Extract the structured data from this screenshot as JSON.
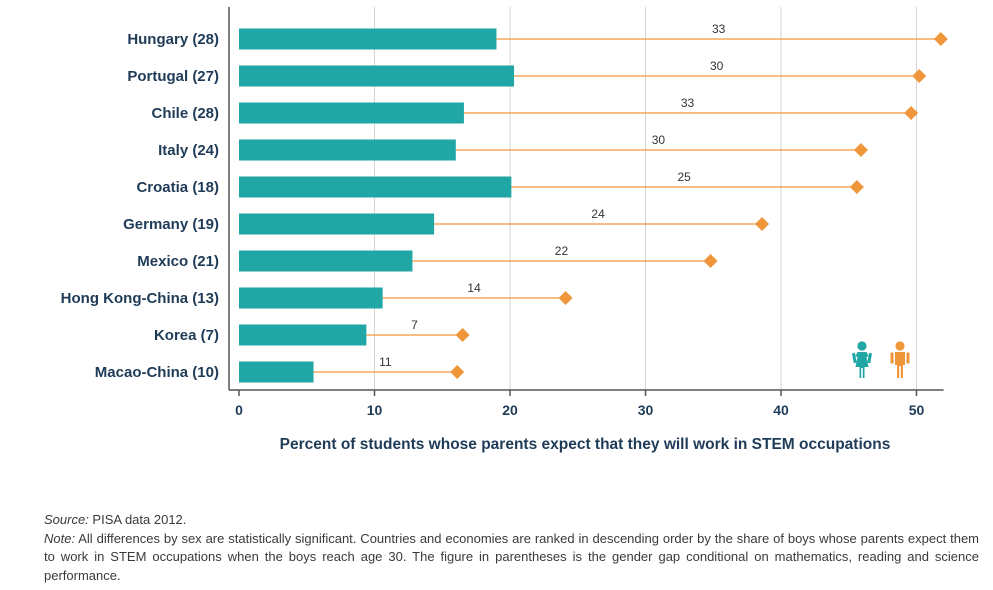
{
  "chart_data": {
    "type": "bar",
    "orientation": "horizontal",
    "categories": [
      "Hungary (28)",
      "Portugal (27)",
      "Chile (28)",
      "Italy (24)",
      "Croatia (18)",
      "Germany (19)",
      "Mexico (21)",
      "Hong Kong-China (13)",
      "Korea (7)",
      "Macao-China (10)"
    ],
    "series": [
      {
        "values": [
          19,
          20.3,
          16.6,
          16,
          20.1,
          14.4,
          12.8,
          10.6,
          9.4,
          5.5
        ],
        "color": "#20a6a5",
        "marker": "bar"
      },
      {
        "values": [
          51.8,
          50.2,
          49.6,
          45.9,
          45.6,
          38.6,
          34.8,
          24.1,
          16.5,
          16.1
        ],
        "color": "#f0963a",
        "marker": "diamond"
      }
    ],
    "gap_labels": [
      "33",
      "30",
      "33",
      "30",
      "25",
      "24",
      "22",
      "14",
      "7",
      "11"
    ],
    "xlabel": "Percent of students whose parents expect that they will work in STEM occupations",
    "xlim": [
      0,
      52
    ],
    "xticks": [
      "0",
      "10",
      "20",
      "30",
      "40",
      "50"
    ],
    "grid": true,
    "legend": {
      "icons": [
        "girl-icon",
        "boy-icon"
      ],
      "placement": "bottom-right"
    }
  },
  "notes": {
    "source_label": "Source:",
    "source_text": " PISA data 2012.",
    "note_label": "Note:",
    "note_text": " All differences by sex are statistically significant. Countries and economies are ranked in descending order by the share of boys whose parents expect them to work in STEM occupations when the boys reach age 30. The figure in parentheses is the gender gap conditional on mathematics, reading and science performance."
  }
}
